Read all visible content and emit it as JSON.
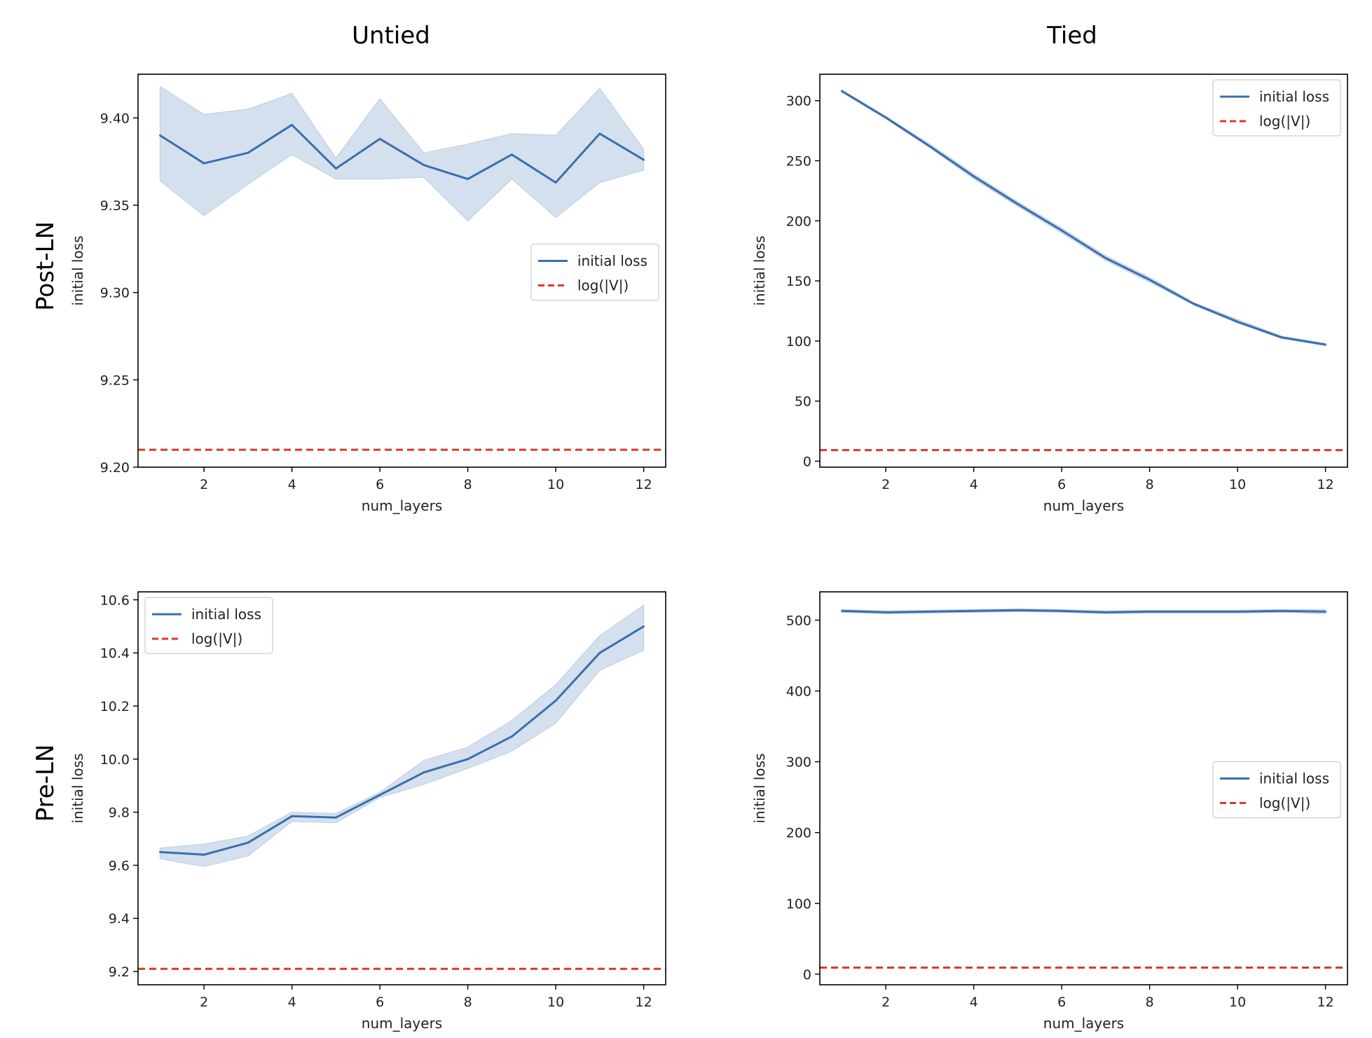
{
  "figure": {
    "column_titles": [
      "Untied",
      "Tied"
    ],
    "row_titles": [
      "Post-LN",
      "Pre-LN"
    ]
  },
  "colors": {
    "line": "#3a6fb0",
    "band": "#b9cde3",
    "reference": "#d93a2b",
    "axes": "#000000"
  },
  "chart_data": [
    {
      "panel": "top-left",
      "type": "line",
      "xlabel": "num_layers",
      "ylabel": "initial loss",
      "xlim": [
        0.5,
        12.5
      ],
      "ylim": [
        9.2,
        9.425
      ],
      "xticks": [
        2,
        4,
        6,
        8,
        10,
        12
      ],
      "yticks": [
        9.2,
        9.25,
        9.3,
        9.35,
        9.4
      ],
      "ytick_decimals": 2,
      "grid": false,
      "legend_position": "center-right",
      "x": [
        1,
        2,
        3,
        4,
        5,
        6,
        7,
        8,
        9,
        10,
        11,
        12
      ],
      "series": [
        {
          "name": "initial loss",
          "style": "solid-with-band",
          "values": [
            9.39,
            9.374,
            9.38,
            9.396,
            9.371,
            9.388,
            9.373,
            9.365,
            9.379,
            9.363,
            9.391,
            9.376
          ],
          "lower": [
            9.364,
            9.344,
            9.362,
            9.379,
            9.365,
            9.365,
            9.366,
            9.341,
            9.365,
            9.343,
            9.363,
            9.37
          ],
          "upper": [
            9.418,
            9.402,
            9.405,
            9.414,
            9.377,
            9.411,
            9.38,
            9.385,
            9.391,
            9.39,
            9.417,
            9.382
          ]
        },
        {
          "name": "log(|V|)",
          "style": "dashed-horizontal",
          "value": 9.21
        }
      ]
    },
    {
      "panel": "top-right",
      "type": "line",
      "xlabel": "num_layers",
      "ylabel": "initial loss",
      "xlim": [
        0.5,
        12.5
      ],
      "ylim": [
        -5,
        322
      ],
      "xticks": [
        2,
        4,
        6,
        8,
        10,
        12
      ],
      "yticks": [
        0,
        50,
        100,
        150,
        200,
        250,
        300
      ],
      "ytick_decimals": 0,
      "grid": false,
      "legend_position": "top-right",
      "x": [
        1,
        2,
        3,
        4,
        5,
        6,
        7,
        8,
        9,
        10,
        11,
        12
      ],
      "series": [
        {
          "name": "initial loss",
          "style": "solid-with-band",
          "values": [
            308,
            286,
            262,
            237,
            214,
            192,
            169,
            151,
            131,
            116,
            103,
            97
          ],
          "lower": [
            307,
            285,
            261,
            235,
            212,
            190,
            167,
            149,
            130,
            115,
            102,
            96
          ],
          "upper": [
            309,
            287,
            264,
            239,
            216,
            194,
            171,
            153,
            132,
            118,
            104,
            98
          ]
        },
        {
          "name": "log(|V|)",
          "style": "dashed-horizontal",
          "value": 9.21
        }
      ]
    },
    {
      "panel": "bottom-left",
      "type": "line",
      "xlabel": "num_layers",
      "ylabel": "initial loss",
      "xlim": [
        0.5,
        12.5
      ],
      "ylim": [
        9.15,
        10.63
      ],
      "xticks": [
        2,
        4,
        6,
        8,
        10,
        12
      ],
      "yticks": [
        9.2,
        9.4,
        9.6,
        9.8,
        10.0,
        10.2,
        10.4,
        10.6
      ],
      "ytick_decimals": 1,
      "grid": false,
      "legend_position": "top-left",
      "x": [
        1,
        2,
        3,
        4,
        5,
        6,
        7,
        8,
        9,
        10,
        11,
        12
      ],
      "series": [
        {
          "name": "initial loss",
          "style": "solid-with-band",
          "values": [
            9.65,
            9.64,
            9.685,
            9.785,
            9.78,
            9.865,
            9.95,
            10.0,
            10.085,
            10.22,
            10.4,
            10.5
          ],
          "lower": [
            9.625,
            9.595,
            9.635,
            9.765,
            9.76,
            9.855,
            9.905,
            9.965,
            10.03,
            10.135,
            10.335,
            10.41
          ],
          "upper": [
            9.665,
            9.68,
            9.71,
            9.8,
            9.795,
            9.875,
            9.995,
            10.045,
            10.145,
            10.28,
            10.465,
            10.58
          ]
        },
        {
          "name": "log(|V|)",
          "style": "dashed-horizontal",
          "value": 9.21
        }
      ]
    },
    {
      "panel": "bottom-right",
      "type": "line",
      "xlabel": "num_layers",
      "ylabel": "initial loss",
      "xlim": [
        0.5,
        12.5
      ],
      "ylim": [
        -15,
        540
      ],
      "xticks": [
        2,
        4,
        6,
        8,
        10,
        12
      ],
      "yticks": [
        0,
        100,
        200,
        300,
        400,
        500
      ],
      "ytick_decimals": 0,
      "grid": false,
      "legend_position": "center-right",
      "x": [
        1,
        2,
        3,
        4,
        5,
        6,
        7,
        8,
        9,
        10,
        11,
        12
      ],
      "series": [
        {
          "name": "initial loss",
          "style": "solid-with-band",
          "values": [
            513,
            511,
            512,
            513,
            514,
            513,
            511,
            512,
            512,
            512,
            513,
            512
          ],
          "lower": [
            511,
            509,
            510,
            511,
            512,
            511,
            509,
            510,
            510,
            510,
            511,
            509
          ],
          "upper": [
            515,
            513,
            514,
            515,
            516,
            515,
            513,
            514,
            514,
            514,
            515,
            515
          ]
        },
        {
          "name": "log(|V|)",
          "style": "dashed-horizontal",
          "value": 9.21
        }
      ]
    }
  ]
}
